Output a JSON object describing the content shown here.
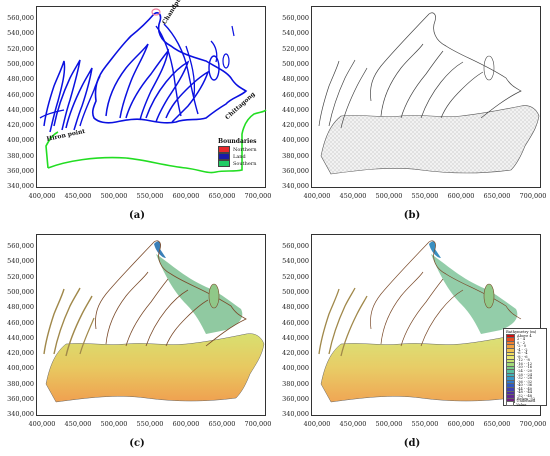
{
  "figure": {
    "yticks": [
      "560,000",
      "540,000",
      "520,000",
      "500,000",
      "480,000",
      "460,000",
      "440,000",
      "420,000",
      "400,000",
      "380,000",
      "360,000",
      "340,000"
    ],
    "xticks": [
      "400,000",
      "450,000",
      "500,000",
      "550,000",
      "600,000",
      "650,000",
      "700,000"
    ],
    "panels": [
      {
        "caption": "(a)"
      },
      {
        "caption": "(b)"
      },
      {
        "caption": "(c)"
      },
      {
        "caption": "(d)"
      }
    ]
  },
  "panel_a": {
    "labels": {
      "chandpur": "Chandpur",
      "chittagong": "Chittagong",
      "hiron_point": "Hiron point"
    },
    "legend": {
      "title": "Boundaries",
      "items": [
        {
          "label": "Northern",
          "color": "#e8282b"
        },
        {
          "label": "Land",
          "color": "#1a1aa8"
        },
        {
          "label": "Southern",
          "color": "#22cc66"
        }
      ]
    },
    "colors": {
      "land": "#0a10e0",
      "southern": "#22dd22",
      "northern": "#f080a0"
    }
  },
  "panel_d": {
    "legend": {
      "title": "Bathymetry (m)",
      "items": [
        {
          "label": "Above 4",
          "color": "#d01010"
        },
        {
          "label": "2 - 4",
          "color": "#e85020"
        },
        {
          "label": "0 - 2",
          "color": "#f08030"
        },
        {
          "label": "-2 - 0",
          "color": "#f0a040"
        },
        {
          "label": "-4 - -2",
          "color": "#f0c050"
        },
        {
          "label": "-6 - -4",
          "color": "#f0dc60"
        },
        {
          "label": "-8 - -6",
          "color": "#e8e870"
        },
        {
          "label": "-12 - -8",
          "color": "#c8e070"
        },
        {
          "label": "-16 - -12",
          "color": "#a0d878"
        },
        {
          "label": "-20 - -16",
          "color": "#78cc88"
        },
        {
          "label": "-24 - -20",
          "color": "#58c0a0"
        },
        {
          "label": "-28 - -24",
          "color": "#40b0b8"
        },
        {
          "label": "-32 - -28",
          "color": "#3898c8"
        },
        {
          "label": "-36 - -32",
          "color": "#3078c8"
        },
        {
          "label": "-40 - -36",
          "color": "#3058c0"
        },
        {
          "label": "-44 - -40",
          "color": "#4040b0"
        },
        {
          "label": "-48 - -44",
          "color": "#5030a0"
        },
        {
          "label": "-52 - -48",
          "color": "#602890"
        },
        {
          "label": "Below -52",
          "color": "#702080"
        },
        {
          "label": "Undefined Value",
          "color": "#ffffff"
        }
      ]
    }
  }
}
